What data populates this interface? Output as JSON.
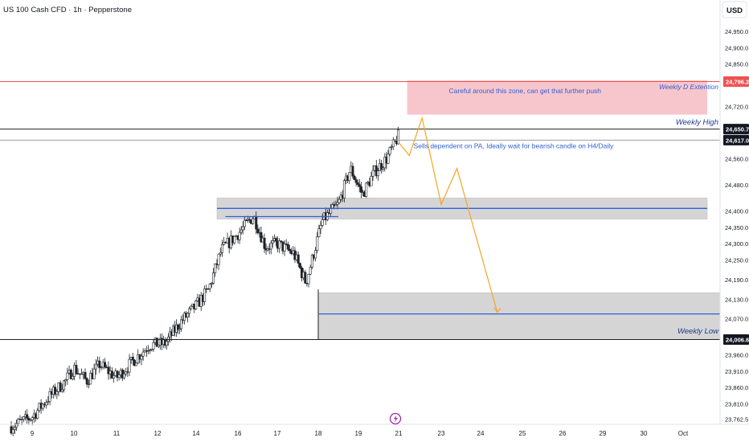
{
  "header": {
    "symbol_title": "US 100 Cash CFD · 1h · Pepperstone",
    "currency": "USD"
  },
  "colors": {
    "up": "#26302f",
    "down": "#26302f",
    "accent_blue": "#2f5fd8",
    "red": "#ef5350",
    "projection": "#f5a623",
    "zone_gray": "#d5d5d5",
    "zone_red": "#f7c6cc",
    "weekly_high_line": "#222222"
  },
  "chart_data": {
    "type": "candlestick",
    "ylim": [
      23720,
      25000
    ],
    "yticks": [
      24950,
      24900,
      24850,
      24720,
      24560,
      24480,
      24400,
      24350,
      24300,
      24250,
      24190,
      24130,
      24070,
      23960,
      23910,
      23860,
      23810,
      23762.5
    ],
    "xlim": [
      8.5,
      31.6
    ],
    "xticks": [
      {
        "label": "9",
        "x": 9
      },
      {
        "label": "10",
        "x": 10
      },
      {
        "label": "11",
        "x": 11
      },
      {
        "label": "12",
        "x": 12
      },
      {
        "label": "14",
        "x": 13
      },
      {
        "label": "16",
        "x": 14
      },
      {
        "label": "17",
        "x": 15
      },
      {
        "label": "18",
        "x": 16
      },
      {
        "label": "19",
        "x": 17
      },
      {
        "label": "21",
        "x": 18
      },
      {
        "label": "23",
        "x": 19
      },
      {
        "label": "24",
        "x": 20
      },
      {
        "label": "25",
        "x": 21
      },
      {
        "label": "26",
        "x": 22
      },
      {
        "label": "29",
        "x": 23
      },
      {
        "label": "30",
        "x": 24
      },
      {
        "label": "Oct",
        "x": 25
      }
    ],
    "price_labels": [
      {
        "value": 24796.2,
        "label": "24,796.2",
        "bg": "#ef5350"
      },
      {
        "value": 24650.7,
        "label": "24,650.7",
        "bg": "#131722"
      },
      {
        "value": 24617.0,
        "label": "24,617.0",
        "bg": "#131722"
      },
      {
        "value": 24006.6,
        "label": "24,006.6",
        "bg": "#131722"
      }
    ],
    "path_anchors": [
      [
        8.5,
        23740
      ],
      [
        9.0,
        23770
      ],
      [
        9.4,
        23830
      ],
      [
        9.8,
        23880
      ],
      [
        10.0,
        23920
      ],
      [
        10.3,
        23880
      ],
      [
        10.6,
        23930
      ],
      [
        11.0,
        23890
      ],
      [
        11.4,
        23940
      ],
      [
        11.8,
        23990
      ],
      [
        12.2,
        23995
      ],
      [
        12.6,
        24060
      ],
      [
        13.0,
        24110
      ],
      [
        13.3,
        24160
      ],
      [
        13.6,
        24280
      ],
      [
        14.0,
        24330
      ],
      [
        14.4,
        24385
      ],
      [
        14.7,
        24290
      ],
      [
        15.0,
        24300
      ],
      [
        15.4,
        24270
      ],
      [
        15.7,
        24180
      ],
      [
        16.1,
        24370
      ],
      [
        16.5,
        24420
      ],
      [
        16.8,
        24530
      ],
      [
        17.1,
        24450
      ],
      [
        17.4,
        24520
      ],
      [
        17.7,
        24560
      ],
      [
        18.0,
        24630
      ]
    ],
    "candles_seed": 7,
    "annotations": {
      "red_level": 24796.2,
      "weekly_high": 24650.7,
      "gray_level": 24617.0,
      "weekly_low": 24006.6,
      "upper_zone": {
        "x0": 13.5,
        "x1": 25.6,
        "y0": 24375,
        "y1": 24440
      },
      "upper_zone_line": {
        "x0": 13.5,
        "x1": 25.6,
        "y": 24408
      },
      "upper_short_line": {
        "x0": 13.7,
        "x1": 16.5,
        "y": 24383
      },
      "lower_zone": {
        "x0": 16.0,
        "x1": 31.6,
        "y0": 24006.6,
        "y1": 24150
      },
      "lower_zone_line": {
        "x0": 16.0,
        "x1": 31.6,
        "y": 24085
      },
      "red_zone": {
        "x0": 18.2,
        "x1": 25.6,
        "y0": 24695,
        "y1": 24800
      },
      "projection": [
        [
          18.0,
          24610
        ],
        [
          18.25,
          24570
        ],
        [
          18.55,
          24685
        ],
        [
          19.0,
          24420
        ],
        [
          19.4,
          24530
        ],
        [
          20.4,
          24090
        ]
      ]
    },
    "texts": {
      "weekly_d_extension": "Weekly D Extention",
      "weekly_high": "Weekly High",
      "weekly_low": "Weekly Low",
      "red_zone_note": "Careful around this zone, can get that further push",
      "sells_note": "Sells dependent on PA, Ideally wait for bearish candle on H4/Daily"
    }
  }
}
